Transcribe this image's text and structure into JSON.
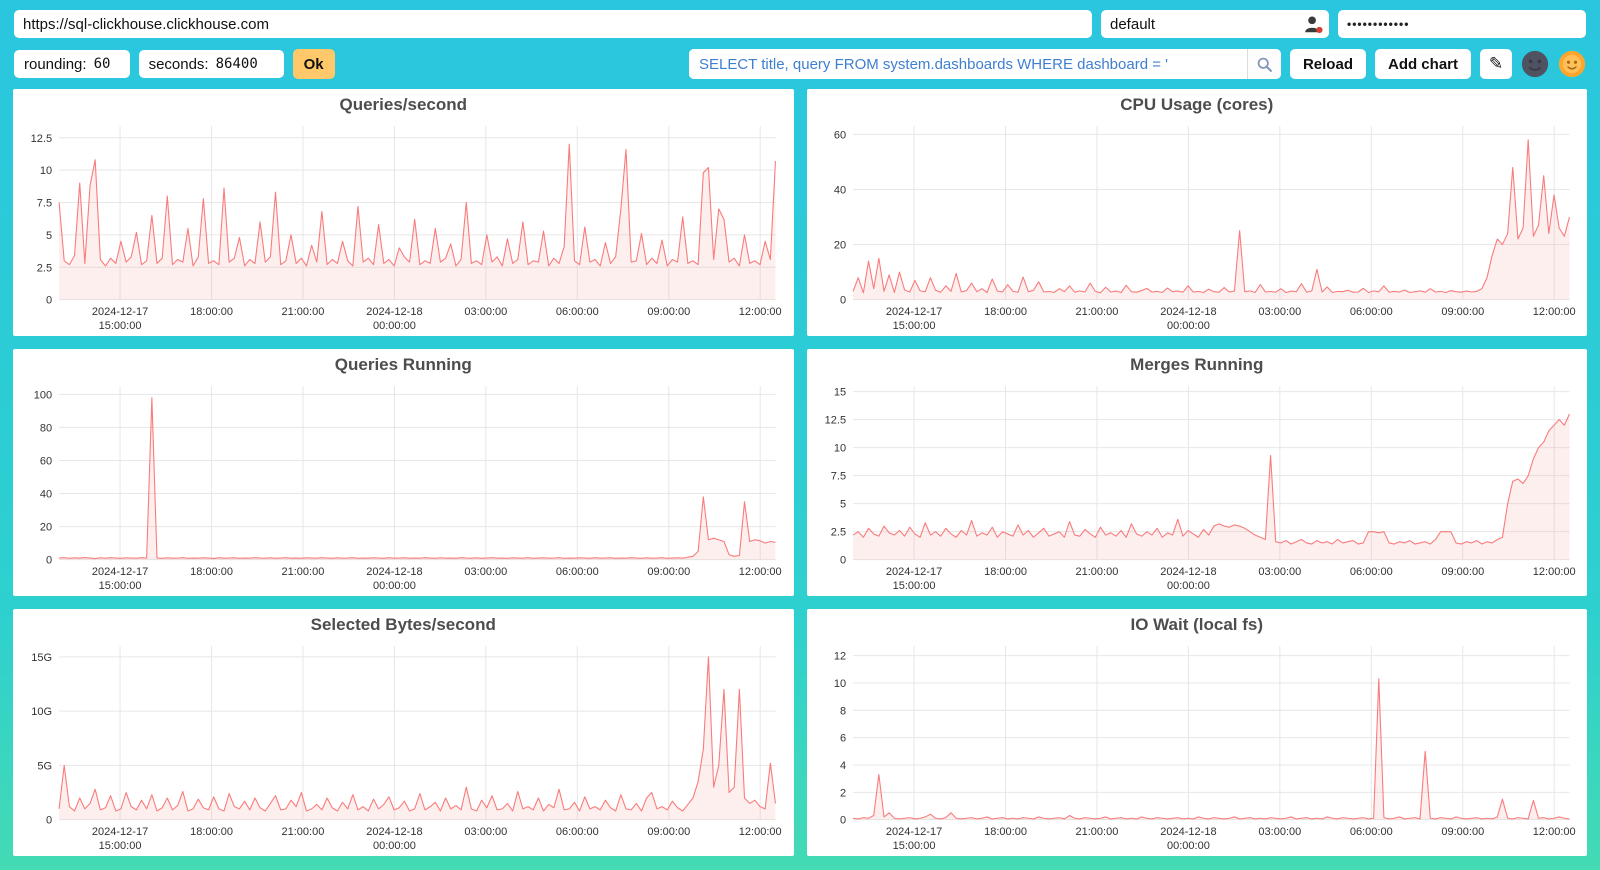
{
  "connection": {
    "url": "https://sql-clickhouse.clickhouse.com",
    "username": "default",
    "password_masked": "••••••••••••"
  },
  "controls": {
    "rounding_label": "rounding:",
    "rounding_value": "60",
    "seconds_label": "seconds:",
    "seconds_value": "86400",
    "ok_label": "Ok",
    "query_value": "SELECT title, query FROM system.dashboards WHERE dashboard = '",
    "reload_label": "Reload",
    "add_chart_label": "Add chart",
    "edit_icon": "✎"
  },
  "colors": {
    "line": "#f97c7c",
    "fill": "rgba(249,124,124,0.12)",
    "grid": "#e7e7e7",
    "accent_button": "#ffc96b",
    "query_text": "#3f7fd0",
    "background_top": "#2ac6df",
    "background_bottom": "#43dab4"
  },
  "x_axis": {
    "ticks": [
      {
        "frac": 0.0851,
        "lines": [
          "2024-12-17",
          "15:00:00"
        ]
      },
      {
        "frac": 0.2128,
        "lines": [
          "18:00:00"
        ]
      },
      {
        "frac": 0.3404,
        "lines": [
          "21:00:00"
        ]
      },
      {
        "frac": 0.4681,
        "lines": [
          "2024-12-18",
          "00:00:00"
        ]
      },
      {
        "frac": 0.5957,
        "lines": [
          "03:00:00"
        ]
      },
      {
        "frac": 0.7234,
        "lines": [
          "06:00:00"
        ]
      },
      {
        "frac": 0.8511,
        "lines": [
          "09:00:00"
        ]
      },
      {
        "frac": 0.9787,
        "lines": [
          "12:00:00"
        ]
      }
    ]
  },
  "chart_data": [
    {
      "type": "line",
      "title": "Queries/second",
      "ylim": [
        0,
        13.4
      ],
      "tick_values": [
        0,
        2.5,
        5,
        7.5,
        10,
        12.5
      ],
      "tick_labels": [
        "0",
        "2.5",
        "5",
        "7.5",
        "10",
        "12.5"
      ],
      "values": [
        7.5,
        3.0,
        2.7,
        3.4,
        9.0,
        2.8,
        8.8,
        10.8,
        3.1,
        2.6,
        3.2,
        2.8,
        4.5,
        2.9,
        3.3,
        5.2,
        2.7,
        3.0,
        6.5,
        2.8,
        3.2,
        8.0,
        2.7,
        3.1,
        2.9,
        5.5,
        2.6,
        3.3,
        7.8,
        2.8,
        3.0,
        2.7,
        8.6,
        2.9,
        3.2,
        4.8,
        2.6,
        3.1,
        2.8,
        6.0,
        2.9,
        3.3,
        8.3,
        2.7,
        3.0,
        5.0,
        2.8,
        3.2,
        2.6,
        4.2,
        2.9,
        6.8,
        2.7,
        3.1,
        2.8,
        4.5,
        3.0,
        2.6,
        7.2,
        2.9,
        3.2,
        2.7,
        5.8,
        2.8,
        3.1,
        2.6,
        4.0,
        3.3,
        2.9,
        6.2,
        2.7,
        3.0,
        2.8,
        5.5,
        2.9,
        3.2,
        4.3,
        2.6,
        3.1,
        7.5,
        2.8,
        3.0,
        2.7,
        5.0,
        2.9,
        3.3,
        2.6,
        4.7,
        2.8,
        3.1,
        6.0,
        2.7,
        3.0,
        2.9,
        5.3,
        2.6,
        3.2,
        2.8,
        4.1,
        12.0,
        3.0,
        2.7,
        5.6,
        2.9,
        3.1,
        2.6,
        4.4,
        2.8,
        3.3,
        7.0,
        11.6,
        2.9,
        3.0,
        5.1,
        2.7,
        3.2,
        2.8,
        4.6,
        2.6,
        3.1,
        2.9,
        6.4,
        2.8,
        3.0,
        2.7,
        9.8,
        10.2,
        3.1,
        7.0,
        6.2,
        2.9,
        3.2,
        2.6,
        5.0,
        2.8,
        3.0,
        2.7,
        4.5,
        3.1,
        10.7
      ]
    },
    {
      "type": "line",
      "title": "CPU Usage (cores)",
      "ylim": [
        0,
        63
      ],
      "tick_values": [
        0,
        20,
        40,
        60
      ],
      "tick_labels": [
        "0",
        "20",
        "40",
        "60"
      ],
      "values": [
        3.0,
        8.0,
        2.5,
        14.0,
        4.0,
        15.0,
        3.0,
        9.0,
        2.6,
        10.0,
        3.5,
        2.8,
        7.0,
        3.2,
        2.9,
        8.0,
        3.4,
        2.7,
        5.0,
        3.0,
        9.5,
        2.8,
        3.3,
        6.0,
        2.9,
        4.0,
        2.6,
        7.5,
        3.1,
        2.8,
        5.5,
        3.0,
        2.7,
        8.2,
        2.9,
        3.4,
        6.5,
        2.8,
        3.0,
        2.6,
        4.0,
        2.9,
        5.0,
        2.7,
        3.2,
        2.8,
        6.0,
        3.0,
        2.5,
        4.5,
        2.8,
        3.1,
        2.6,
        5.2,
        2.9,
        2.7,
        3.3,
        4.1,
        2.8,
        3.0,
        2.6,
        4.2,
        2.9,
        3.1,
        2.7,
        5.0,
        2.8,
        3.0,
        2.6,
        3.8,
        2.9,
        2.7,
        4.4,
        2.8,
        3.1,
        25.0,
        2.9,
        3.2,
        2.6,
        5.5,
        2.8,
        3.0,
        2.7,
        4.0,
        2.6,
        3.1,
        2.9,
        5.8,
        2.7,
        3.2,
        11.0,
        2.8,
        4.6,
        2.6,
        3.0,
        2.9,
        3.4,
        2.7,
        2.8,
        4.1,
        2.6,
        3.2,
        2.9,
        5.0,
        2.7,
        3.0,
        2.8,
        3.5,
        2.6,
        2.9,
        3.2,
        2.7,
        4.0,
        2.8,
        3.0,
        2.6,
        3.3,
        2.9,
        2.7,
        3.1,
        2.8,
        3.0,
        4.0,
        8.0,
        16.0,
        22.0,
        20.0,
        24.0,
        48.0,
        22.0,
        26.0,
        58.0,
        23.0,
        27.0,
        45.0,
        24.0,
        38.0,
        26.0,
        23.0,
        30.0
      ]
    },
    {
      "type": "line",
      "title": "Queries Running",
      "ylim": [
        0,
        105
      ],
      "tick_values": [
        0,
        20,
        40,
        60,
        80,
        100
      ],
      "tick_labels": [
        "0",
        "20",
        "40",
        "60",
        "80",
        "100"
      ],
      "values": [
        1.0,
        1.2,
        0.8,
        1.1,
        0.9,
        1.3,
        1.0,
        0.7,
        1.1,
        0.9,
        1.2,
        1.0,
        0.8,
        1.1,
        1.0,
        0.9,
        1.2,
        1.0,
        98.0,
        1.0,
        0.8,
        1.1,
        0.9,
        1.0,
        1.2,
        0.8,
        1.0,
        0.9,
        1.1,
        1.0,
        0.7,
        1.2,
        0.9,
        1.0,
        1.1,
        0.8,
        1.0,
        0.9,
        1.2,
        1.0,
        0.9,
        1.1,
        0.8,
        1.0,
        1.2,
        0.9,
        1.0,
        0.8,
        1.1,
        1.0,
        0.9,
        1.2,
        1.0,
        0.8,
        1.1,
        0.9,
        1.0,
        1.2,
        0.8,
        1.0,
        0.9,
        1.1,
        1.0,
        0.8,
        1.2,
        0.9,
        1.0,
        1.1,
        0.8,
        1.0,
        0.9,
        1.2,
        1.0,
        0.8,
        1.1,
        0.9,
        1.0,
        0.8,
        1.2,
        1.0,
        0.9,
        1.1,
        0.8,
        1.0,
        1.2,
        0.9,
        1.0,
        0.8,
        1.1,
        1.0,
        0.9,
        1.2,
        0.8,
        1.0,
        1.1,
        0.9,
        1.0,
        1.2,
        0.8,
        1.0,
        0.9,
        1.1,
        1.0,
        0.8,
        1.2,
        0.9,
        1.0,
        1.1,
        0.8,
        1.0,
        0.9,
        1.2,
        1.0,
        0.8,
        1.1,
        0.9,
        1.0,
        1.2,
        0.8,
        1.0,
        1.1,
        0.9,
        1.5,
        2.0,
        5.0,
        38.0,
        12.0,
        13.0,
        12.0,
        11.0,
        3.0,
        2.0,
        2.5,
        35.0,
        11.0,
        12.0,
        11.5,
        10.0,
        11.0,
        10.5
      ]
    },
    {
      "type": "line",
      "title": "Merges Running",
      "ylim": [
        0,
        15.5
      ],
      "tick_values": [
        0,
        2.5,
        5,
        7.5,
        10,
        12.5,
        15
      ],
      "tick_labels": [
        "0",
        "2.5",
        "5",
        "7.5",
        "10",
        "12.5",
        "15"
      ],
      "values": [
        2.2,
        2.5,
        2.0,
        2.8,
        2.3,
        2.1,
        3.0,
        2.4,
        2.2,
        2.6,
        2.1,
        2.9,
        2.3,
        2.0,
        3.3,
        2.2,
        2.5,
        2.1,
        2.8,
        2.3,
        2.0,
        2.6,
        2.2,
        3.5,
        2.1,
        2.4,
        2.2,
        2.9,
        2.0,
        2.5,
        2.3,
        2.1,
        3.1,
        2.2,
        2.6,
        2.0,
        2.4,
        2.8,
        2.1,
        2.3,
        2.5,
        2.0,
        3.4,
        2.2,
        2.1,
        2.7,
        2.3,
        2.0,
        2.9,
        2.2,
        2.4,
        2.1,
        2.6,
        2.0,
        3.2,
        2.3,
        2.1,
        2.5,
        2.2,
        2.8,
        2.0,
        2.4,
        2.2,
        3.6,
        2.1,
        2.6,
        2.3,
        2.0,
        2.7,
        2.2,
        3.0,
        3.2,
        3.0,
        2.9,
        3.1,
        3.0,
        2.8,
        2.5,
        2.2,
        2.0,
        1.8,
        9.3,
        1.6,
        1.5,
        1.7,
        1.4,
        1.6,
        1.8,
        1.5,
        1.4,
        1.7,
        1.5,
        1.6,
        1.4,
        1.8,
        1.5,
        1.6,
        1.7,
        1.4,
        1.5,
        2.5,
        2.5,
        2.4,
        2.5,
        1.5,
        1.4,
        1.6,
        1.5,
        1.7,
        1.4,
        1.5,
        1.6,
        1.4,
        1.8,
        2.5,
        2.5,
        2.5,
        1.5,
        1.4,
        1.6,
        1.5,
        1.7,
        1.4,
        1.6,
        1.5,
        1.8,
        2.0,
        5.0,
        7.0,
        7.2,
        6.8,
        7.5,
        9.0,
        10.0,
        10.5,
        11.5,
        12.0,
        12.5,
        12.0,
        13.0
      ]
    },
    {
      "type": "line",
      "title": "Selected Bytes/second",
      "ylim": [
        0,
        16
      ],
      "tick_values": [
        0,
        5,
        10,
        15
      ],
      "tick_labels": [
        "0",
        "5G",
        "10G",
        "15G"
      ],
      "values": [
        1.0,
        5.0,
        1.2,
        0.8,
        2.0,
        1.0,
        1.5,
        2.8,
        0.9,
        1.1,
        2.2,
        0.8,
        1.0,
        2.5,
        1.2,
        0.9,
        1.8,
        1.0,
        2.3,
        0.8,
        1.1,
        2.0,
        0.9,
        1.3,
        2.6,
        0.8,
        1.0,
        1.9,
        1.1,
        0.9,
        2.1,
        1.0,
        0.8,
        2.4,
        1.2,
        1.0,
        1.7,
        0.9,
        2.0,
        1.1,
        0.8,
        1.5,
        2.2,
        0.9,
        1.0,
        1.8,
        1.2,
        2.5,
        0.8,
        1.0,
        1.4,
        0.9,
        2.0,
        1.1,
        0.8,
        1.6,
        1.0,
        2.3,
        0.9,
        1.2,
        0.8,
        1.9,
        1.0,
        1.4,
        2.1,
        0.9,
        1.1,
        1.7,
        0.8,
        1.0,
        2.4,
        0.9,
        1.2,
        1.6,
        0.8,
        2.0,
        1.0,
        1.3,
        0.9,
        3.0,
        1.0,
        0.8,
        1.8,
        1.1,
        2.2,
        0.9,
        1.0,
        1.5,
        0.8,
        2.6,
        1.0,
        1.2,
        0.9,
        2.0,
        0.8,
        1.4,
        1.1,
        2.8,
        0.9,
        1.0,
        1.6,
        0.8,
        2.1,
        1.0,
        1.2,
        0.9,
        1.8,
        1.1,
        0.8,
        2.3,
        1.0,
        0.9,
        1.5,
        0.8,
        2.0,
        2.5,
        1.0,
        1.2,
        0.9,
        1.7,
        1.1,
        0.8,
        1.4,
        2.0,
        3.5,
        6.5,
        15.0,
        3.0,
        5.0,
        12.0,
        2.5,
        3.0,
        12.0,
        2.0,
        1.5,
        1.8,
        1.2,
        1.0,
        5.2,
        1.5
      ]
    },
    {
      "type": "line",
      "title": "IO Wait (local fs)",
      "ylim": [
        0,
        12.7
      ],
      "tick_values": [
        0,
        2,
        4,
        6,
        8,
        10,
        12
      ],
      "tick_labels": [
        "0",
        "2",
        "4",
        "6",
        "8",
        "10",
        "12"
      ],
      "values": [
        0.1,
        0.05,
        0.15,
        0.1,
        0.3,
        3.3,
        0.2,
        0.5,
        0.1,
        0.05,
        0.1,
        0.15,
        0.05,
        0.1,
        0.2,
        0.4,
        0.1,
        0.05,
        0.15,
        0.5,
        0.1,
        0.05,
        0.1,
        0.15,
        0.05,
        0.1,
        0.2,
        0.05,
        0.1,
        0.15,
        0.05,
        0.1,
        0.05,
        0.15,
        0.1,
        0.05,
        0.2,
        0.1,
        0.05,
        0.1,
        0.15,
        0.05,
        0.3,
        0.1,
        0.05,
        0.15,
        0.1,
        0.05,
        0.1,
        0.2,
        0.05,
        0.1,
        0.15,
        0.05,
        0.1,
        0.05,
        0.2,
        0.1,
        0.05,
        0.15,
        0.1,
        0.05,
        0.1,
        0.15,
        0.05,
        0.1,
        0.05,
        0.2,
        0.1,
        0.05,
        0.15,
        0.1,
        0.05,
        0.1,
        0.2,
        0.05,
        0.1,
        0.15,
        0.05,
        0.1,
        0.05,
        0.15,
        0.1,
        0.05,
        0.1,
        0.2,
        0.05,
        0.1,
        0.15,
        0.05,
        0.1,
        0.05,
        0.2,
        0.1,
        0.05,
        0.15,
        0.1,
        0.05,
        0.1,
        0.15,
        0.05,
        0.1,
        10.3,
        0.15,
        0.05,
        0.1,
        0.2,
        0.05,
        0.1,
        0.15,
        0.05,
        5.0,
        0.1,
        0.05,
        0.15,
        0.1,
        0.05,
        0.2,
        0.1,
        0.05,
        0.1,
        0.15,
        0.05,
        0.1,
        0.05,
        0.2,
        1.5,
        0.1,
        0.05,
        0.15,
        0.1,
        0.05,
        1.4,
        0.1,
        0.15,
        0.05,
        0.1,
        0.2,
        0.1,
        0.05
      ]
    }
  ]
}
